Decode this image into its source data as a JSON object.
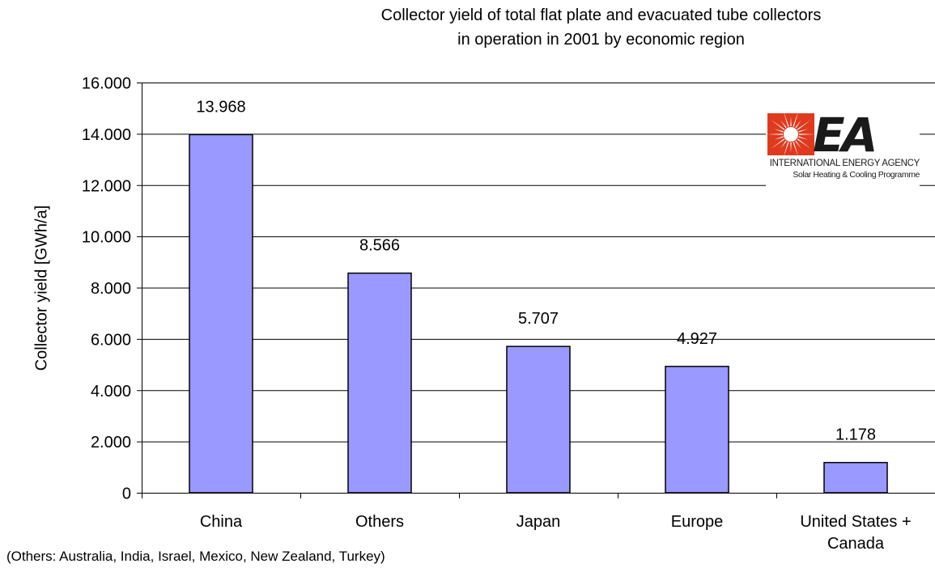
{
  "chart_data": {
    "type": "bar",
    "title_lines": [
      "Collector yield of total flat plate and evacuated tube collectors",
      "in operation in 2001 by economic region"
    ],
    "ylabel": "Collector yield [GWh/a]",
    "xlabel": "",
    "ylim": [
      0,
      16000
    ],
    "ytick_values": [
      0,
      2000,
      4000,
      6000,
      8000,
      10000,
      12000,
      14000,
      16000
    ],
    "ytick_labels": [
      "0",
      "2.000",
      "4.000",
      "6.000",
      "8.000",
      "10.000",
      "12.000",
      "14.000",
      "16.000"
    ],
    "categories": [
      [
        "China"
      ],
      [
        "Others"
      ],
      [
        "Japan"
      ],
      [
        "Europe"
      ],
      [
        "United States +",
        "Canada"
      ]
    ],
    "values": [
      13968,
      8566,
      5707,
      4927,
      1178
    ],
    "data_labels": [
      "13.968",
      "8.566",
      "5.707",
      "4.927",
      "1.178"
    ],
    "grid": "horizontal",
    "bar_color": "#9999ff",
    "bar_edge_color": "#000000"
  },
  "footnote": "(Others: Australia, India, Israel, Mexico, New Zealand, Turkey)",
  "logo": {
    "letters": "EA",
    "line1": "INTERNATIONAL ENERGY AGENCY",
    "line2": "Solar Heating & Cooling Programme",
    "sun_color": "#e03a1e",
    "text_color": "#1a1a1a"
  }
}
